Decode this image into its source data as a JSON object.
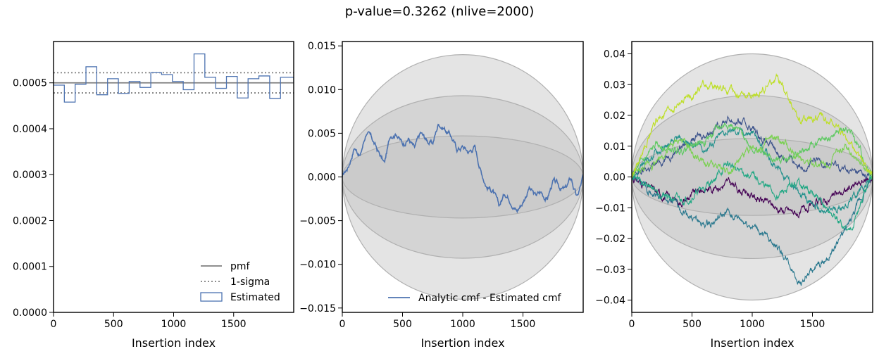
{
  "suptitle": "p-value=0.3262 (nlive=2000)",
  "colors": {
    "estimated": "#4c72b0",
    "pmf": "#7f7f7f",
    "sigma_fill": "#bfbfbf",
    "viridis": [
      "#440154",
      "#3b528b",
      "#21918c",
      "#2a788e",
      "#22a884",
      "#5ec962",
      "#7ad151",
      "#bddf26"
    ]
  },
  "chart_data": [
    {
      "type": "line",
      "panel": "histogram",
      "xlabel": "Insertion index",
      "ylabel": "",
      "xlim": [
        0,
        2000
      ],
      "ylim": [
        0,
        0.00059
      ],
      "xticks": [
        0,
        500,
        1000,
        1500
      ],
      "xticklabels": [
        "0",
        "500",
        "1000",
        "1500"
      ],
      "yticks": [
        0,
        0.0001,
        0.0002,
        0.0003,
        0.0004,
        0.0005
      ],
      "yticklabels": [
        "0.0000",
        "0.0001",
        "0.0002",
        "0.0003",
        "0.0004",
        "0.0005"
      ],
      "pmf": 0.0005,
      "sigma": [
        0.000478,
        0.000522
      ],
      "bin_edges": [
        0,
        90,
        180,
        270,
        360,
        450,
        540,
        630,
        720,
        810,
        900,
        990,
        1080,
        1170,
        1260,
        1350,
        1440,
        1530,
        1620,
        1710,
        1800,
        1890,
        2000
      ],
      "estimated": [
        0.000495,
        0.000458,
        0.000497,
        0.000535,
        0.000474,
        0.000509,
        0.000477,
        0.000503,
        0.00049,
        0.000522,
        0.000518,
        0.000503,
        0.000485,
        0.000563,
        0.000512,
        0.000488,
        0.000514,
        0.000467,
        0.000509,
        0.000515,
        0.000466,
        0.000512,
        0.0005
      ],
      "legend": [
        "pmf",
        "1-sigma",
        "Estimated"
      ],
      "legend_loc": "lower right"
    },
    {
      "type": "line",
      "panel": "cmf-difference",
      "xlabel": "Insertion index",
      "ylabel": "",
      "xlim": [
        0,
        2000
      ],
      "ylim": [
        -0.0155,
        0.0155
      ],
      "xticks": [
        0,
        500,
        1000,
        1500
      ],
      "xticklabels": [
        "0",
        "500",
        "1000",
        "1500"
      ],
      "yticks": [
        -0.015,
        -0.01,
        -0.005,
        0,
        0.005,
        0.01,
        0.015
      ],
      "yticklabels": [
        "−0.015",
        "−0.010",
        "−0.005",
        "0.000",
        "0.005",
        "0.010",
        "0.015"
      ],
      "sigma_bands": [
        0.0047,
        0.0093,
        0.014
      ],
      "series": [
        {
          "name": "Analytic cmf - Estimated cmf",
          "x": [
            0,
            50,
            100,
            150,
            200,
            250,
            300,
            350,
            400,
            450,
            500,
            550,
            600,
            650,
            700,
            750,
            800,
            850,
            900,
            950,
            1000,
            1050,
            1100,
            1150,
            1200,
            1250,
            1300,
            1350,
            1400,
            1450,
            1500,
            1550,
            1600,
            1650,
            1700,
            1750,
            1800,
            1850,
            1900,
            1950,
            2000
          ],
          "y": [
            0.0,
            0.0012,
            0.0035,
            0.0025,
            0.0052,
            0.0042,
            0.0028,
            0.0015,
            0.0048,
            0.0052,
            0.0038,
            0.0045,
            0.0032,
            0.0049,
            0.0042,
            0.0038,
            0.0062,
            0.0056,
            0.0048,
            0.0032,
            0.0035,
            0.0029,
            0.0035,
            0.0008,
            -0.001,
            -0.0015,
            -0.0035,
            -0.0018,
            -0.0025,
            -0.0038,
            -0.0028,
            -0.0012,
            -0.0022,
            -0.0018,
            -0.0025,
            -0.0005,
            -0.0012,
            -0.0015,
            -0.0002,
            -0.0025,
            0.0
          ]
        }
      ],
      "legend": [
        "Analytic cmf - Estimated cmf"
      ],
      "legend_loc": "lower right"
    },
    {
      "type": "line",
      "panel": "cmf-runs",
      "xlabel": "Insertion index",
      "ylabel": "",
      "xlim": [
        0,
        2000
      ],
      "ylim": [
        -0.044,
        0.044
      ],
      "xticks": [
        0,
        500,
        1000,
        1500
      ],
      "xticklabels": [
        "0",
        "500",
        "1000",
        "1500"
      ],
      "yticks": [
        -0.04,
        -0.03,
        -0.02,
        -0.01,
        0,
        0.01,
        0.02,
        0.03,
        0.04
      ],
      "yticklabels": [
        "−0.04",
        "−0.03",
        "−0.02",
        "−0.01",
        "0.00",
        "0.01",
        "0.02",
        "0.03",
        "0.04"
      ],
      "sigma_bands": [
        0.0125,
        0.0265,
        0.04
      ],
      "series": [
        {
          "x": [
            0,
            200,
            400,
            600,
            800,
            1000,
            1200,
            1400,
            1600,
            1800,
            2000
          ],
          "y": [
            0.0,
            -0.005,
            -0.008,
            -0.004,
            -0.002,
            -0.006,
            -0.01,
            -0.012,
            -0.008,
            -0.004,
            0.0
          ]
        },
        {
          "x": [
            0,
            200,
            400,
            600,
            800,
            1000,
            1200,
            1400,
            1600,
            1800,
            2000
          ],
          "y": [
            0.0,
            0.004,
            0.01,
            0.014,
            0.019,
            0.016,
            0.008,
            0.004,
            0.005,
            0.002,
            0.0
          ]
        },
        {
          "x": [
            0,
            200,
            400,
            600,
            800,
            1000,
            1200,
            1400,
            1600,
            1800,
            2000
          ],
          "y": [
            0.0,
            0.008,
            0.012,
            0.009,
            0.015,
            0.014,
            0.004,
            -0.006,
            -0.012,
            -0.008,
            0.0
          ]
        },
        {
          "x": [
            0,
            200,
            400,
            600,
            800,
            1000,
            1200,
            1400,
            1600,
            1800,
            2000
          ],
          "y": [
            0.0,
            -0.006,
            -0.01,
            -0.016,
            -0.012,
            -0.016,
            -0.022,
            -0.034,
            -0.028,
            -0.016,
            0.0
          ]
        },
        {
          "x": [
            0,
            200,
            400,
            600,
            800,
            1000,
            1200,
            1400,
            1600,
            1800,
            2000
          ],
          "y": [
            0.0,
            -0.004,
            -0.008,
            -0.004,
            0.004,
            0.0,
            -0.006,
            -0.002,
            -0.01,
            -0.018,
            0.0
          ]
        },
        {
          "x": [
            0,
            200,
            400,
            600,
            800,
            1000,
            1200,
            1400,
            1600,
            1800,
            2000
          ],
          "y": [
            0.0,
            0.01,
            0.008,
            0.012,
            0.018,
            0.01,
            0.005,
            0.008,
            0.012,
            0.016,
            0.0
          ]
        },
        {
          "x": [
            0,
            200,
            400,
            600,
            800,
            1000,
            1200,
            1400,
            1600,
            1800,
            2000
          ],
          "y": [
            0.0,
            0.005,
            0.012,
            0.004,
            0.002,
            0.009,
            0.012,
            0.006,
            0.004,
            0.01,
            0.0
          ]
        },
        {
          "x": [
            0,
            200,
            400,
            600,
            800,
            1000,
            1200,
            1400,
            1600,
            1800,
            2000
          ],
          "y": [
            0.0,
            0.018,
            0.024,
            0.03,
            0.028,
            0.025,
            0.032,
            0.018,
            0.02,
            0.012,
            0.0
          ]
        }
      ]
    }
  ]
}
